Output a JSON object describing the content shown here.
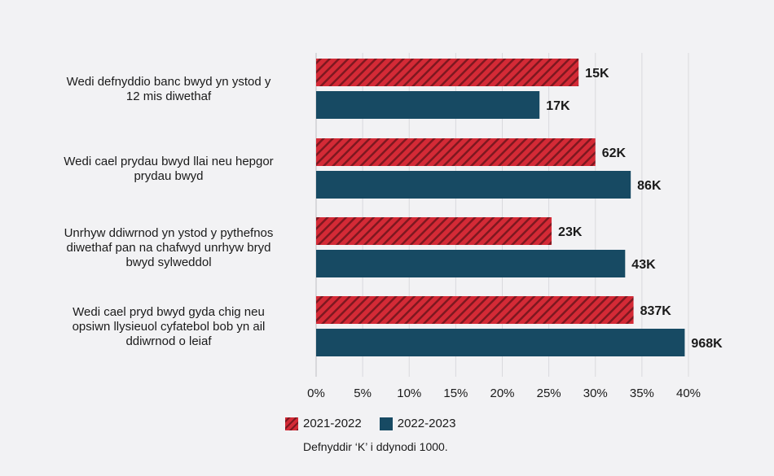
{
  "chart_data": {
    "type": "bar",
    "orientation": "horizontal",
    "categories": [
      [
        "Wedi defnyddio banc bwyd yn ystod y",
        "12 mis diwethaf"
      ],
      [
        "Wedi cael prydau bwyd llai neu hepgor",
        "prydau bwyd"
      ],
      [
        "Unrhyw ddiwrnod yn ystod y pythefnos",
        "diwethaf pan na chafwyd unrhyw bryd",
        "bwyd sylweddol"
      ],
      [
        "Wedi cael pryd bwyd gyda chig neu",
        "opsiwn llysieuol cyfatebol bob yn ail",
        "ddiwrnod o leiaf"
      ]
    ],
    "series": [
      {
        "name": "2021-2022",
        "color": "#d42a36",
        "pattern": "hatched",
        "values": [
          28.2,
          30.0,
          25.3,
          34.1
        ],
        "labels": [
          "15K",
          "62K",
          "23K",
          "837K"
        ]
      },
      {
        "name": "2022-2023",
        "color": "#174a63",
        "pattern": "solid",
        "values": [
          24.0,
          33.8,
          33.2,
          39.6
        ],
        "labels": [
          "17K",
          "86K",
          "43K",
          "968K"
        ]
      }
    ],
    "xlim": [
      0,
      40
    ],
    "xticks": [
      0,
      5,
      10,
      15,
      20,
      25,
      30,
      35,
      40
    ],
    "xtick_labels": [
      "0%",
      "5%",
      "10%",
      "15%",
      "20%",
      "25%",
      "30%",
      "35%",
      "40%"
    ],
    "grid": true,
    "legend_position": "bottom",
    "note": "Defnyddir ‘K’ i ddynodi 1000."
  }
}
